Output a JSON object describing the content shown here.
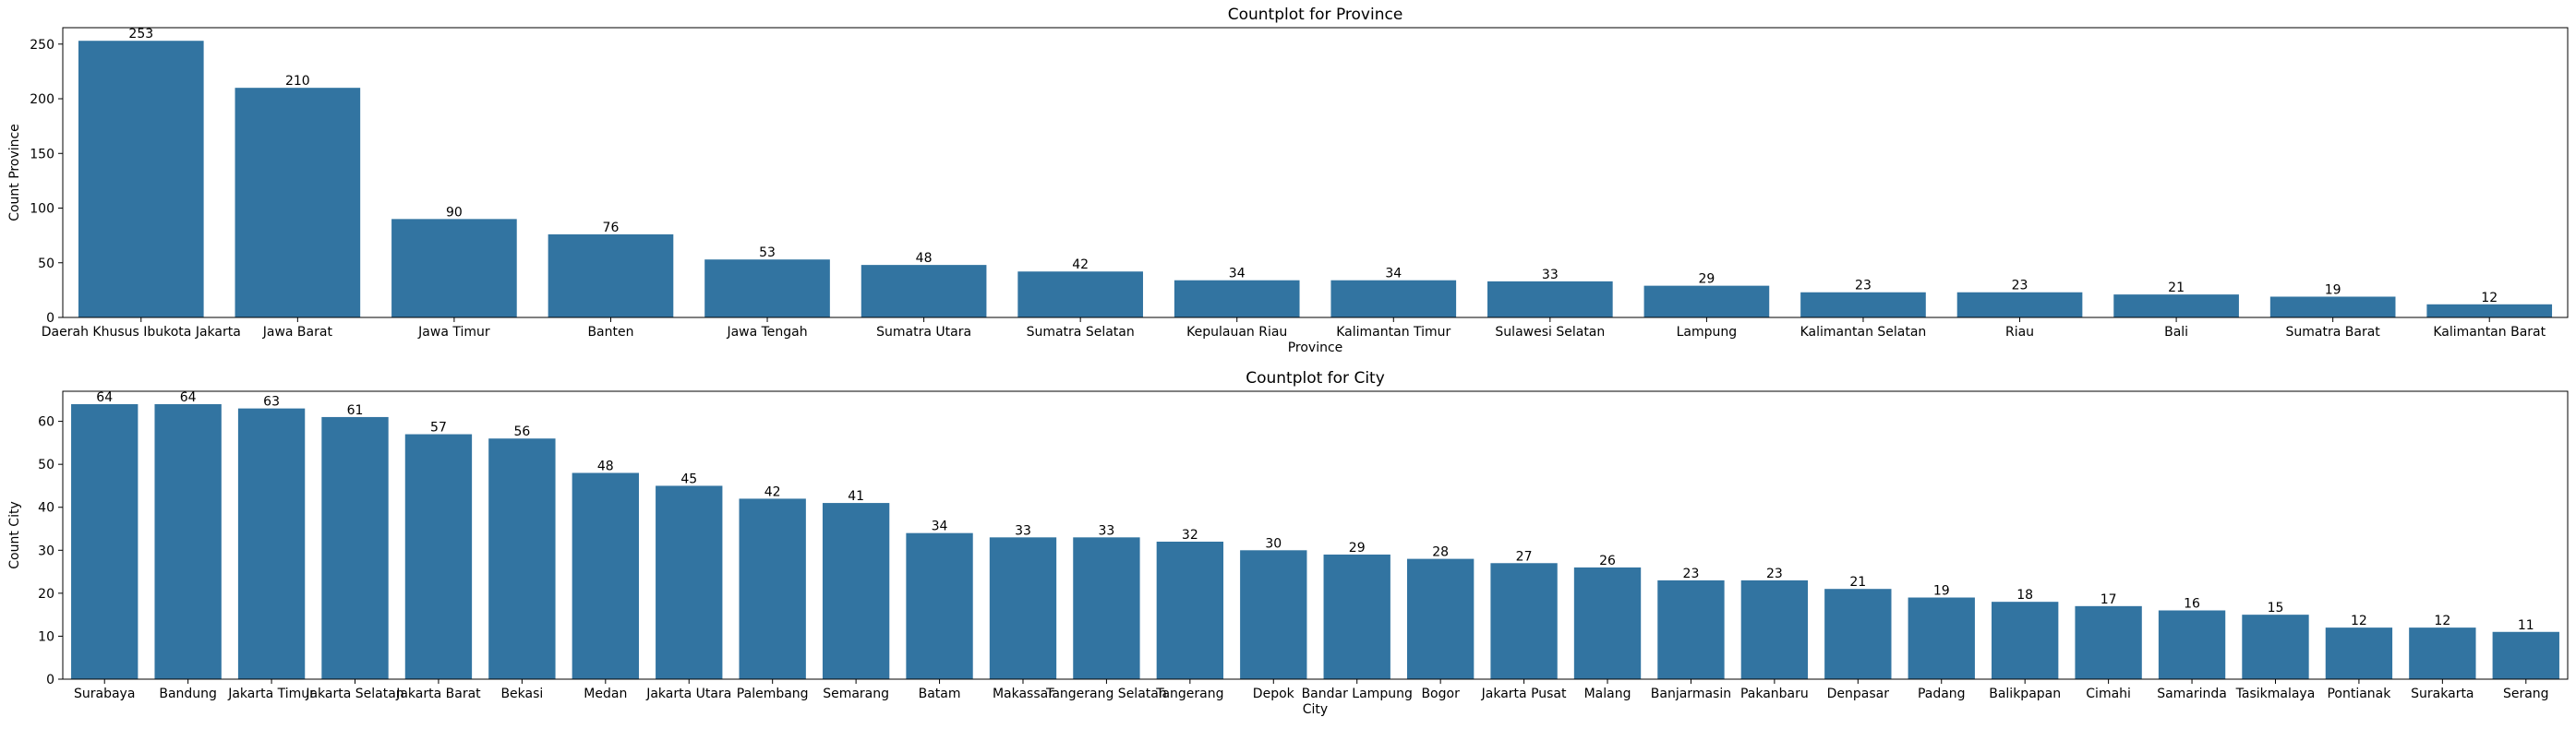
{
  "chart_data": [
    {
      "type": "bar",
      "title": "Countplot for Province",
      "xlabel": "Province",
      "ylabel": "Count Province",
      "ylim": [
        0,
        265
      ],
      "yticks": [
        0,
        50,
        100,
        150,
        200,
        250
      ],
      "color": "#3274a1",
      "grid": false,
      "categories": [
        "Daerah Khusus Ibukota Jakarta",
        "Jawa Barat",
        "Jawa Timur",
        "Banten",
        "Jawa Tengah",
        "Sumatra Utara",
        "Sumatra Selatan",
        "Kepulauan Riau",
        "Kalimantan Timur",
        "Sulawesi Selatan",
        "Lampung",
        "Kalimantan Selatan",
        "Riau",
        "Bali",
        "Sumatra Barat",
        "Kalimantan Barat"
      ],
      "values": [
        253,
        210,
        90,
        76,
        53,
        48,
        42,
        34,
        34,
        33,
        29,
        23,
        23,
        21,
        19,
        12
      ]
    },
    {
      "type": "bar",
      "title": "Countplot for City",
      "xlabel": "City",
      "ylabel": "Count City",
      "ylim": [
        0,
        67
      ],
      "yticks": [
        0,
        10,
        20,
        30,
        40,
        50,
        60
      ],
      "color": "#3274a1",
      "grid": false,
      "categories": [
        "Surabaya",
        "Bandung",
        "Jakarta Timur",
        "Jakarta Selatan",
        "Jakarta Barat",
        "Bekasi",
        "Medan",
        "Jakarta Utara",
        "Palembang",
        "Semarang",
        "Batam",
        "Makassar",
        "Tangerang Selatan",
        "Tangerang",
        "Depok",
        "Bandar Lampung",
        "Bogor",
        "Jakarta Pusat",
        "Malang",
        "Banjarmasin",
        "Pakanbaru",
        "Denpasar",
        "Padang",
        "Balikpapan",
        "Cimahi",
        "Samarinda",
        "Tasikmalaya",
        "Pontianak",
        "Surakarta",
        "Serang"
      ],
      "values": [
        64,
        64,
        63,
        61,
        57,
        56,
        48,
        45,
        42,
        41,
        34,
        33,
        33,
        32,
        30,
        29,
        28,
        27,
        26,
        23,
        23,
        21,
        19,
        18,
        17,
        16,
        15,
        12,
        12,
        11
      ]
    }
  ]
}
